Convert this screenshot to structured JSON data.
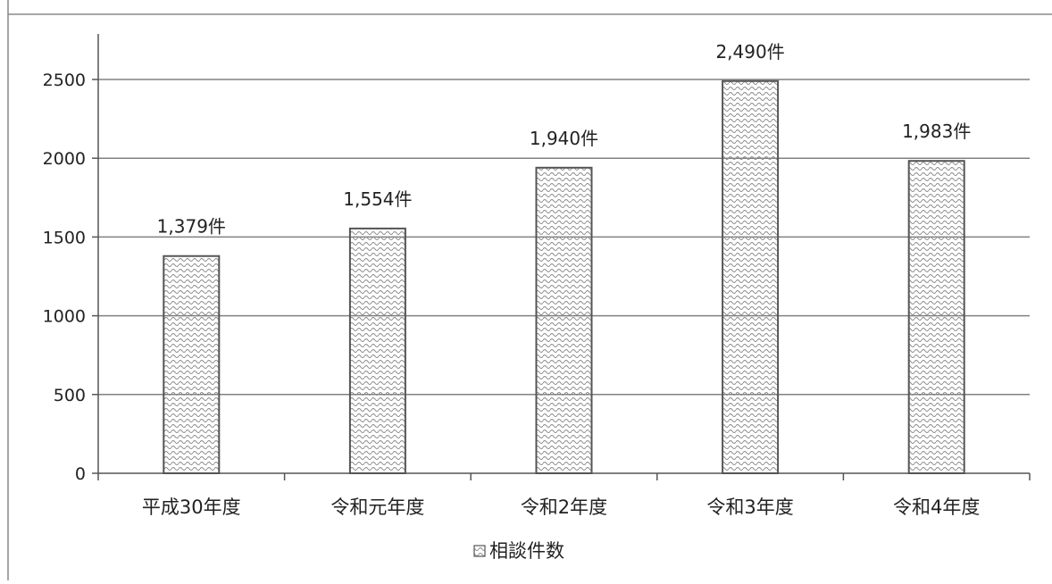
{
  "chart_data": {
    "type": "bar",
    "categories": [
      "平成30年度",
      "令和元年度",
      "令和2年度",
      "令和3年度",
      "令和4年度"
    ],
    "values": [
      1379,
      1554,
      1940,
      2490,
      1983
    ],
    "data_labels": [
      "1,379件",
      "1,554件",
      "1,940件",
      "2,490件",
      "1,983件"
    ],
    "series": [
      {
        "name": "相談件数",
        "values": [
          1379,
          1554,
          1940,
          2490,
          1983
        ]
      }
    ],
    "yticks": [
      "0",
      "500",
      "1000",
      "1500",
      "2000",
      "2500"
    ],
    "ylim": [
      0,
      3000
    ],
    "grid": true,
    "legend": "bottom",
    "colors": {
      "bar_stroke": "#555555",
      "pattern": "#8a8a8a",
      "grid": "#808080",
      "axis": "#555555"
    }
  }
}
